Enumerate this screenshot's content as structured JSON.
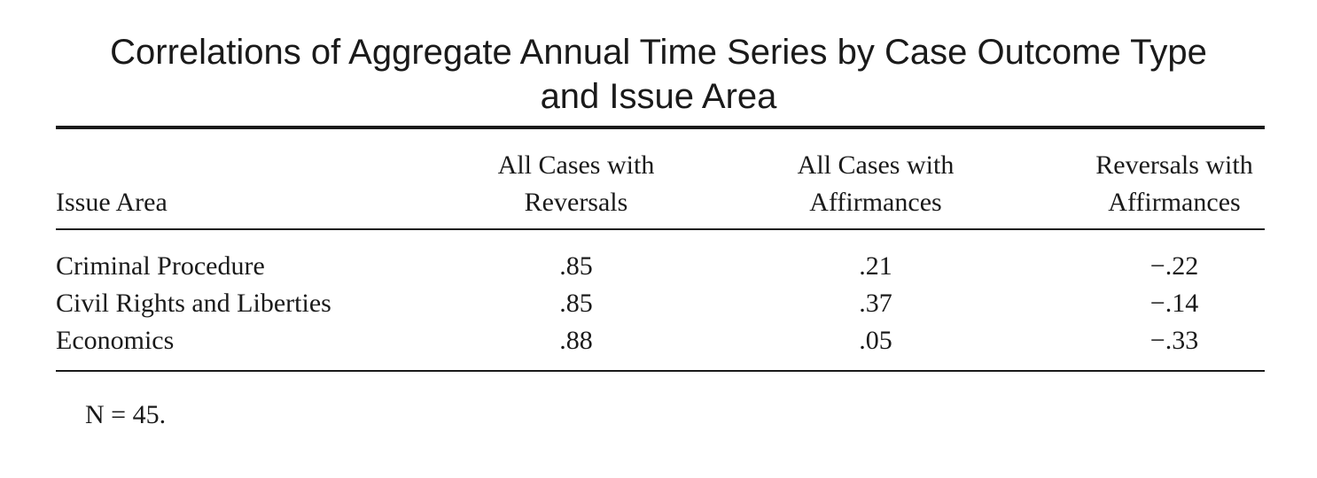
{
  "title_line1": "Correlations of Aggregate Annual Time Series by Case Outcome Type",
  "title_line2": "and Issue Area",
  "table": {
    "headers": {
      "issue_area": "Issue Area",
      "col1": [
        "All Cases with",
        "Reversals"
      ],
      "col2": [
        "All Cases with",
        "Affirmances"
      ],
      "col3": [
        "Reversals with",
        "Affirmances"
      ]
    },
    "rows": [
      {
        "label": "Criminal Procedure",
        "values": [
          ".85",
          ".21",
          "−.22"
        ]
      },
      {
        "label": "Civil Rights and Liberties",
        "values": [
          ".85",
          ".37",
          "−.14"
        ]
      },
      {
        "label": "Economics",
        "values": [
          ".88",
          ".05",
          "−.33"
        ]
      }
    ]
  },
  "note": "N = 45."
}
